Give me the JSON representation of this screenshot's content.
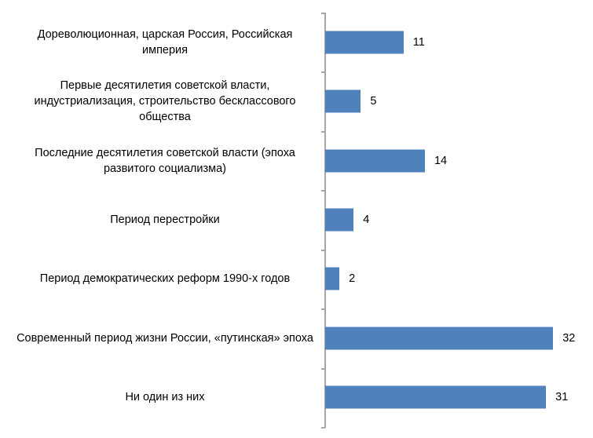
{
  "chart_data": {
    "type": "bar",
    "orientation": "horizontal",
    "title": "",
    "xlabel": "",
    "ylabel": "",
    "grid": false,
    "legend": null,
    "bar_color": "#4f81bd",
    "axis_color": "#a6a6a6",
    "categories": [
      "Дореволюционная, царская Россия, Российская империя",
      "Первые десятилетия советской власти, индустриализация, строительство бесклассового общества",
      "Последние десятилетия советской власти (эпоха развитого социализма)",
      "Период перестройки",
      "Период демократических реформ 1990-х годов",
      "Современный период жизни России, «путинская» эпоха",
      "Ни один из них"
    ],
    "values": [
      11,
      5,
      14,
      4,
      2,
      32,
      31
    ],
    "data_labels": [
      "11",
      "5",
      "14",
      "4",
      "2",
      "32",
      "31"
    ]
  },
  "rows": [
    {
      "label": "Дореволюционная, царская Россия, Российская империя",
      "value": "11"
    },
    {
      "label": "Первые десятилетия советской власти, индустриализация, строительство бесклассового общества",
      "value": "5"
    },
    {
      "label": "Последние десятилетия советской власти (эпоха развитого социализма)",
      "value": "14"
    },
    {
      "label": "Период перестройки",
      "value": "4"
    },
    {
      "label": "Период демократических реформ 1990-х годов",
      "value": "2"
    },
    {
      "label": "Современный период жизни России, «путинская» эпоха",
      "value": "32"
    },
    {
      "label": "Ни один из них",
      "value": "31"
    }
  ]
}
